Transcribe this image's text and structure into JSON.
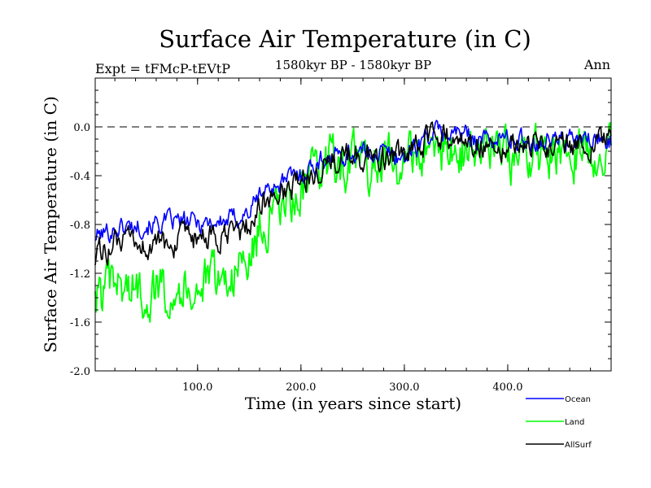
{
  "chart_data": {
    "type": "line",
    "title": "Surface Air Temperature (in C)",
    "subtitle": "1580kyr BP - 1580kyr BP",
    "left_note": "Expt = tFMcP-tEVtP",
    "right_note": "Ann",
    "xlabel": "Time (in years since start)",
    "ylabel": "Surface Air Temperature (in C)",
    "xlim": [
      1,
      500
    ],
    "ylim": [
      -2.0,
      0.4
    ],
    "x_ticks": [
      100,
      200,
      300,
      400
    ],
    "x_tick_labels": [
      "100.0",
      "200.0",
      "300.0",
      "400.0"
    ],
    "y_ticks": [
      -2.0,
      -1.6,
      -1.2,
      -0.8,
      -0.4,
      0.0
    ],
    "y_tick_labels": [
      "-2.0",
      "-1.6",
      "-1.2",
      "-0.8",
      "-0.4",
      "0.0"
    ],
    "reference_line": 0.0,
    "legend_position": "bottom-right",
    "series": [
      {
        "name": "Ocean",
        "color": "#0000ff",
        "x": [
          1,
          25,
          50,
          75,
          100,
          125,
          150,
          160,
          175,
          200,
          225,
          250,
          275,
          300,
          325,
          350,
          375,
          400,
          425,
          450,
          475,
          500
        ],
        "values": [
          -0.9,
          -0.82,
          -0.8,
          -0.78,
          -0.78,
          -0.78,
          -0.7,
          -0.55,
          -0.48,
          -0.38,
          -0.25,
          -0.22,
          -0.2,
          -0.25,
          -0.05,
          -0.05,
          -0.1,
          -0.1,
          -0.12,
          -0.1,
          -0.12,
          -0.1
        ]
      },
      {
        "name": "Land",
        "color": "#00ff00",
        "x": [
          1,
          25,
          50,
          75,
          100,
          125,
          150,
          160,
          175,
          200,
          225,
          250,
          275,
          300,
          325,
          350,
          375,
          400,
          425,
          450,
          475,
          500
        ],
        "values": [
          -1.4,
          -1.3,
          -1.35,
          -1.3,
          -1.3,
          -1.25,
          -1.1,
          -0.85,
          -0.75,
          -0.55,
          -0.3,
          -0.3,
          -0.32,
          -0.3,
          -0.15,
          -0.2,
          -0.2,
          -0.25,
          -0.25,
          -0.2,
          -0.2,
          -0.18
        ]
      },
      {
        "name": "AllSurf",
        "color": "#000000",
        "x": [
          1,
          25,
          50,
          75,
          100,
          125,
          150,
          160,
          175,
          200,
          225,
          250,
          275,
          300,
          325,
          350,
          375,
          400,
          425,
          450,
          475,
          500
        ],
        "values": [
          -1.05,
          -0.95,
          -0.98,
          -0.95,
          -0.93,
          -0.92,
          -0.82,
          -0.65,
          -0.58,
          -0.45,
          -0.28,
          -0.25,
          -0.24,
          -0.27,
          -0.08,
          -0.1,
          -0.13,
          -0.15,
          -0.16,
          -0.13,
          -0.15,
          -0.12
        ]
      }
    ]
  }
}
